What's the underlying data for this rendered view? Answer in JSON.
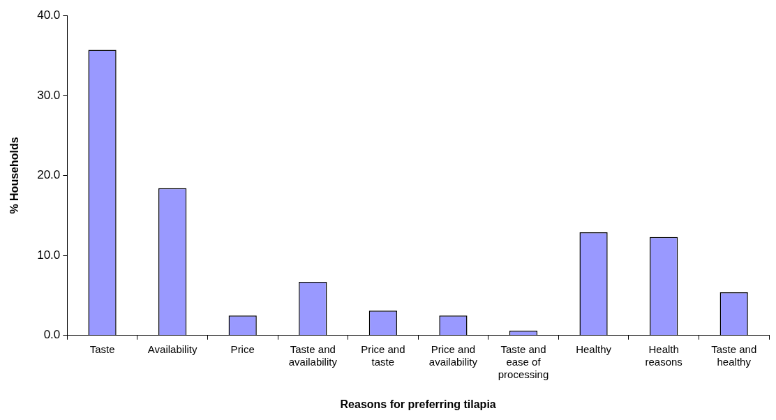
{
  "chart_data": {
    "type": "bar",
    "xlabel": "Reasons for preferring tilapia",
    "ylabel": "% Households",
    "categories": [
      "Taste",
      "Availability",
      "Price",
      "Taste and availability",
      "Price and taste",
      "Price and availability",
      "Taste and ease of processing",
      "Healthy",
      "Health reasons",
      "Taste and healthy"
    ],
    "values": [
      35.7,
      18.4,
      2.5,
      6.7,
      3.1,
      2.5,
      0.6,
      12.9,
      12.3,
      5.4
    ],
    "color": "#9999ff",
    "ylim": [
      0,
      40
    ],
    "yticks": [
      {
        "value": 0,
        "label": "0.0"
      },
      {
        "value": 10,
        "label": "10.0"
      },
      {
        "value": 20,
        "label": "20.0"
      },
      {
        "value": 30,
        "label": "30.0"
      },
      {
        "value": 40,
        "label": "40.0"
      }
    ],
    "grid": false,
    "legend": false
  }
}
